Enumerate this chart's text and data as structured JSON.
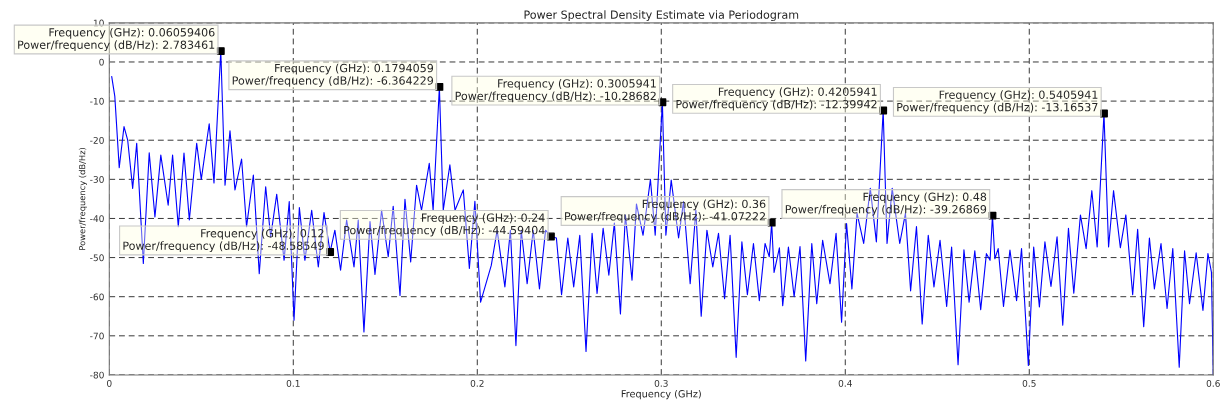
{
  "chart_data": {
    "type": "line",
    "title": "Power Spectral Density Estimate via Periodogram",
    "xlabel": "Frequency (GHz)",
    "ylabel": "Power/frequency (dB/Hz)",
    "xlim": [
      0,
      0.6
    ],
    "ylim": [
      -80,
      10
    ],
    "xticks": [
      0,
      0.1,
      0.2,
      0.3,
      0.4,
      0.5,
      0.6
    ],
    "yticks": [
      -80,
      -70,
      -60,
      -50,
      -40,
      -30,
      -20,
      -10,
      0,
      10
    ],
    "grid": true,
    "series": [
      {
        "type": "line",
        "color": "#0000ff",
        "x": [
          0.0013,
          0.003,
          0.0054,
          0.008,
          0.01,
          0.0127,
          0.0149,
          0.0185,
          0.0217,
          0.0248,
          0.028,
          0.032,
          0.0344,
          0.0375,
          0.0406,
          0.0435,
          0.0475,
          0.05,
          0.0543,
          0.0569,
          0.0606,
          0.0629,
          0.0656,
          0.0683,
          0.0719,
          0.0746,
          0.0783,
          0.0815,
          0.085,
          0.0877,
          0.091,
          0.095,
          0.0978,
          0.1004,
          0.1033,
          0.1063,
          0.11,
          0.1136,
          0.1167,
          0.12,
          0.1226,
          0.1257,
          0.129,
          0.133,
          0.1353,
          0.1384,
          0.1417,
          0.1444,
          0.148,
          0.1516,
          0.1543,
          0.158,
          0.1607,
          0.1638,
          0.167,
          0.1697,
          0.1739,
          0.176,
          0.1794,
          0.1815,
          0.1851,
          0.1879,
          0.1924,
          0.1957,
          0.1987,
          0.2018,
          0.2076,
          0.2108,
          0.215,
          0.218,
          0.221,
          0.2239,
          0.2271,
          0.2304,
          0.2338,
          0.2371,
          0.24,
          0.243,
          0.2458,
          0.2492,
          0.2524,
          0.2557,
          0.2591,
          0.2624,
          0.2651,
          0.2684,
          0.2715,
          0.2745,
          0.2778,
          0.2805,
          0.2841,
          0.2865,
          0.2901,
          0.2941,
          0.2967,
          0.3006,
          0.3025,
          0.3054,
          0.3094,
          0.3121,
          0.3157,
          0.3188,
          0.3217,
          0.3248,
          0.328,
          0.3311,
          0.3344,
          0.3374,
          0.3407,
          0.3438,
          0.3468,
          0.3501,
          0.3533,
          0.3564,
          0.3587,
          0.36,
          0.3613,
          0.3642,
          0.366,
          0.3691,
          0.3722,
          0.3754,
          0.3785,
          0.3818,
          0.3845,
          0.3877,
          0.3917,
          0.395,
          0.398,
          0.4007,
          0.4036,
          0.4064,
          0.41,
          0.4136,
          0.4169,
          0.4206,
          0.4227,
          0.4255,
          0.4296,
          0.4327,
          0.4355,
          0.4387,
          0.4418,
          0.4451,
          0.4482,
          0.4515,
          0.4551,
          0.4578,
          0.4613,
          0.4645,
          0.4673,
          0.4704,
          0.4736,
          0.4767,
          0.4787,
          0.48,
          0.4813,
          0.4831,
          0.486,
          0.4895,
          0.4931,
          0.4958,
          0.4995,
          0.5024,
          0.5055,
          0.5085,
          0.5118,
          0.5151,
          0.5182,
          0.5213,
          0.5242,
          0.5278,
          0.5309,
          0.534,
          0.5369,
          0.5406,
          0.5431,
          0.5458,
          0.5495,
          0.5525,
          0.5562,
          0.5589,
          0.5622,
          0.5653,
          0.568,
          0.5716,
          0.5749,
          0.578,
          0.5815,
          0.5844,
          0.5871,
          0.5907,
          0.5944,
          0.5971,
          0.599,
          0.6
        ],
        "values": [
          -3.7,
          -8.8,
          -27,
          -16.5,
          -20,
          -32.3,
          -20.8,
          -51.5,
          -23.2,
          -39.6,
          -23.8,
          -36.6,
          -23.8,
          -42.1,
          -23.3,
          -40.4,
          -20.8,
          -30,
          -15.8,
          -30.9,
          2.8,
          -31.5,
          -17.6,
          -32.7,
          -24.8,
          -42.1,
          -28.9,
          -54.1,
          -31.9,
          -44.7,
          -33.8,
          -50.7,
          -35.7,
          -66,
          -37.2,
          -50.7,
          -37.9,
          -52.4,
          -38.5,
          -48.6,
          -43,
          -53.2,
          -40.4,
          -52.4,
          -40.4,
          -69,
          -40.8,
          -54.3,
          -37.9,
          -49.8,
          -36.9,
          -59.7,
          -35.1,
          -51.1,
          -31.5,
          -37.9,
          -25.9,
          -37.9,
          -6.4,
          -37.9,
          -26.3,
          -37.9,
          -32.7,
          -52.8,
          -35.6,
          -61.4,
          -52,
          -43,
          -57.5,
          -43,
          -72.5,
          -43,
          -56.7,
          -43,
          -58,
          -43,
          -44.6,
          -45,
          -59.5,
          -45,
          -57.5,
          -44.3,
          -74,
          -43.8,
          -59.2,
          -42.5,
          -54.5,
          -41.2,
          -64.4,
          -39.1,
          -55.8,
          -36.3,
          -44.3,
          -30,
          -44.3,
          -10.3,
          -44.3,
          -30.2,
          -45,
          -35.7,
          -56.7,
          -37.9,
          -65,
          -43,
          -52.4,
          -43.8,
          -60.5,
          -44.3,
          -75.5,
          -46,
          -59.5,
          -46.4,
          -61,
          -46.4,
          -49.8,
          -41.1,
          -53.8,
          -47.5,
          -62.3,
          -47.3,
          -60,
          -47.2,
          -76.4,
          -46.4,
          -61.8,
          -45.6,
          -56.7,
          -43.8,
          -66.5,
          -41.3,
          -58,
          -38.7,
          -46.4,
          -32.3,
          -46,
          -12.4,
          -46.4,
          -32.3,
          -46.4,
          -38.7,
          -58.5,
          -42.1,
          -67,
          -44.3,
          -57.5,
          -45.6,
          -62.5,
          -47.3,
          -77.4,
          -48,
          -61.4,
          -48.3,
          -63.3,
          -49,
          -50.7,
          -39.3,
          -50.3,
          -47.7,
          -62.5,
          -48.1,
          -61,
          -47.7,
          -77.6,
          -47.3,
          -62.6,
          -46,
          -57.4,
          -44.7,
          -67.3,
          -42.5,
          -59.1,
          -39.1,
          -47.7,
          -32.9,
          -47.3,
          -13.2,
          -47.3,
          -32.9,
          -47.5,
          -39.1,
          -59.5,
          -42.8,
          -67.7,
          -45,
          -58,
          -46.4,
          -63,
          -47.7,
          -78,
          -48.3,
          -61.8,
          -48.8,
          -63.5,
          -49,
          -53.7,
          -80
        ]
      },
      {
        "type": "scatter",
        "color": "#000000",
        "marker": "square",
        "x": [
          0.06059406,
          0.1794059,
          0.3005941,
          0.4205941,
          0.5405941,
          0.12,
          0.24,
          0.36,
          0.48
        ],
        "values": [
          2.783461,
          -6.364229,
          -10.28682,
          -12.39942,
          -13.16537,
          -48.58549,
          -44.59404,
          -41.07222,
          -39.26869
        ]
      }
    ],
    "annotations": [
      {
        "text": "Frequency (GHz): 0.06059406\nPower/frequency (dB/Hz): 2.783461",
        "x": 0.06059406,
        "y": 2.783461
      },
      {
        "text": "Frequency (GHz): 0.1794059\nPower/frequency (dB/Hz): -6.364229",
        "x": 0.1794059,
        "y": -6.364229
      },
      {
        "text": "Frequency (GHz): 0.3005941\nPower/frequency (dB/Hz): -10.28682",
        "x": 0.3005941,
        "y": -10.28682
      },
      {
        "text": "Frequency (GHz): 0.4205941\nPower/frequency (dB/Hz): -12.39942",
        "x": 0.4205941,
        "y": -12.39942
      },
      {
        "text": "Frequency (GHz): 0.5405941\nPower/frequency (dB/Hz): -13.16537",
        "x": 0.5405941,
        "y": -13.16537
      },
      {
        "text": "Frequency (GHz): 0.12\nPower/frequency (dB/Hz): -48.58549",
        "x": 0.12,
        "y": -48.58549
      },
      {
        "text": "Frequency (GHz): 0.24\nPower/frequency (dB/Hz): -44.59404",
        "x": 0.24,
        "y": -44.59404
      },
      {
        "text": "Frequency (GHz): 0.36\nPower/frequency (dB/Hz): -41.07222",
        "x": 0.36,
        "y": -41.07222
      },
      {
        "text": "Frequency (GHz): 0.48\nPower/frequency (dB/Hz): -39.26869",
        "x": 0.48,
        "y": -39.26869
      }
    ]
  }
}
